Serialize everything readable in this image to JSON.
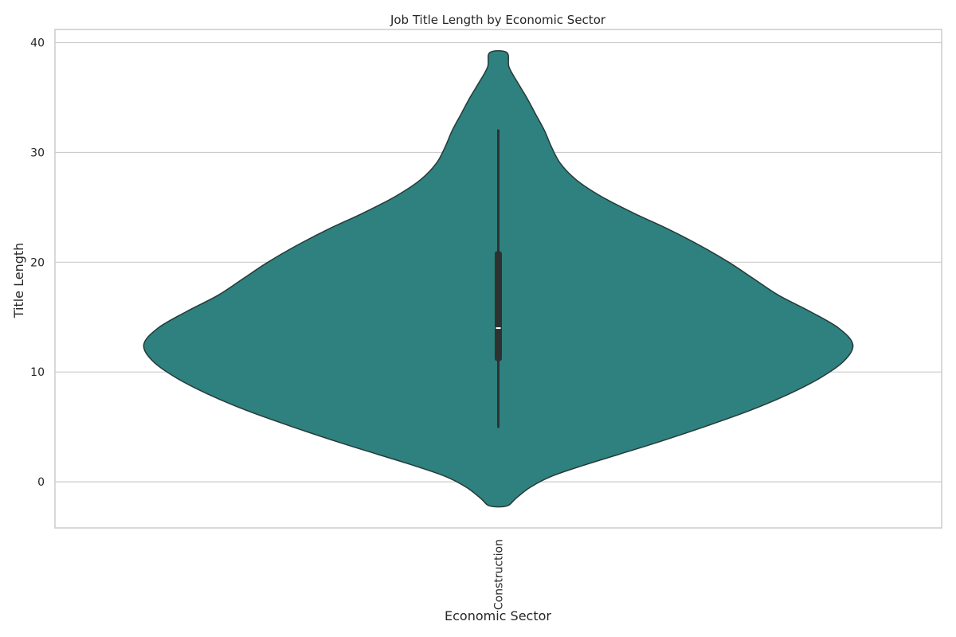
{
  "chart_data": {
    "type": "violin",
    "title": "Job Title Length by Economic Sector",
    "xlabel": "Economic Sector",
    "ylabel": "Title Length",
    "categories": [
      "Construction"
    ],
    "ylim": [
      -4.2,
      41.2
    ],
    "yticks": [
      0,
      10,
      20,
      30,
      40
    ],
    "grid": true,
    "violin_color": "#2e817e",
    "outline_color": "#263a39",
    "box_color": "#2f3131",
    "median_color": "#ffffff",
    "stats": {
      "whisker_low": 5,
      "q1": 11,
      "median": 14,
      "q3": 21,
      "whisker_high": 32,
      "min_extent": -2.2,
      "max_extent": 39.1
    },
    "density": [
      {
        "y": -2.2,
        "w": 0.024
      },
      {
        "y": -1.5,
        "w": 0.05
      },
      {
        "y": -0.5,
        "w": 0.09
      },
      {
        "y": 0.5,
        "w": 0.15
      },
      {
        "y": 1.5,
        "w": 0.24
      },
      {
        "y": 2.5,
        "w": 0.34
      },
      {
        "y": 3.5,
        "w": 0.44
      },
      {
        "y": 5,
        "w": 0.58
      },
      {
        "y": 6.5,
        "w": 0.71
      },
      {
        "y": 8,
        "w": 0.82
      },
      {
        "y": 9.5,
        "w": 0.91
      },
      {
        "y": 11,
        "w": 0.975
      },
      {
        "y": 12.5,
        "w": 1.0
      },
      {
        "y": 14,
        "w": 0.96
      },
      {
        "y": 15.5,
        "w": 0.88
      },
      {
        "y": 17,
        "w": 0.79
      },
      {
        "y": 18.5,
        "w": 0.72
      },
      {
        "y": 20,
        "w": 0.65
      },
      {
        "y": 21.5,
        "w": 0.57
      },
      {
        "y": 23,
        "w": 0.48
      },
      {
        "y": 24.5,
        "w": 0.38
      },
      {
        "y": 26,
        "w": 0.29
      },
      {
        "y": 27.5,
        "w": 0.22
      },
      {
        "y": 29,
        "w": 0.175
      },
      {
        "y": 30.5,
        "w": 0.15
      },
      {
        "y": 32,
        "w": 0.13
      },
      {
        "y": 33.5,
        "w": 0.105
      },
      {
        "y": 35,
        "w": 0.08
      },
      {
        "y": 36.5,
        "w": 0.052
      },
      {
        "y": 37.8,
        "w": 0.03
      },
      {
        "y": 39.1,
        "w": 0.024
      }
    ]
  }
}
